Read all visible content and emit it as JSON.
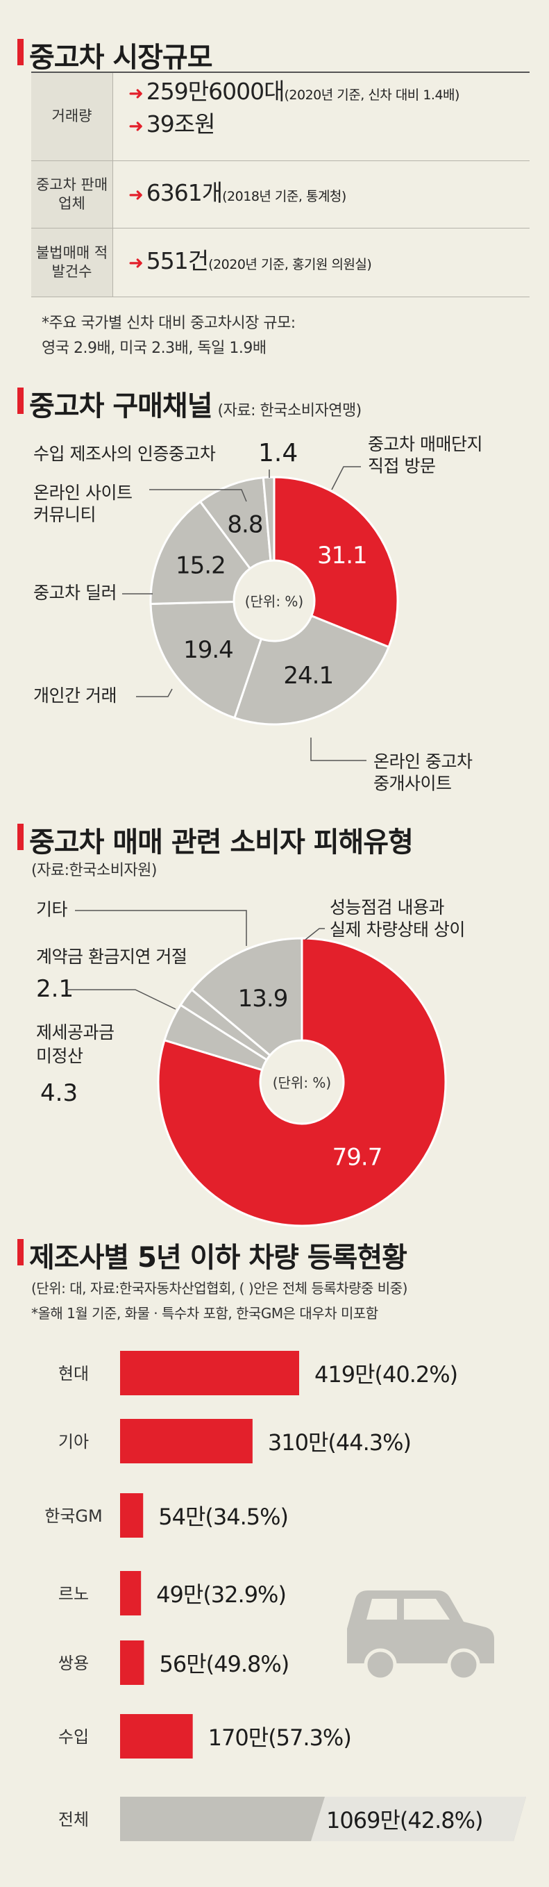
{
  "colors": {
    "accent": "#e3202b",
    "gray": "#c1c0ba",
    "bg": "#f1efe4"
  },
  "section1": {
    "title": "중고차 시장규모",
    "rows": [
      {
        "label": "거래량",
        "lines": [
          {
            "value": "259만6000대",
            "note": "(2020년 기준, 신차 대비 1.4배)"
          },
          {
            "value": "39조원",
            "note": ""
          }
        ]
      },
      {
        "label": "중고차 판매업체",
        "lines": [
          {
            "value": "6361개",
            "note": "(2018년 기준, 통계청)"
          }
        ]
      },
      {
        "label": "불법매매 적발건수",
        "lines": [
          {
            "value": "551건",
            "note": "(2020년 기준, 홍기원 의원실)"
          }
        ]
      }
    ],
    "note_line1": "*주요 국가별 신차 대비 중고차시장 규모:",
    "note_line2": "영국 2.9배, 미국 2.3배, 독일 1.9배"
  },
  "section2": {
    "title": "중고차 구매채널",
    "source": "(자료: 한국소비자연맹)"
  },
  "section3": {
    "title": "중고차 매매 관련 소비자 피해유형",
    "source": "(자료:한국소비자원)"
  },
  "section4": {
    "title": "제조사별 5년 이하 차량 등록현황",
    "source": "(단위: 대, 자료:한국자동차산업협회, (   )안은 전체 등록차량중 비중)",
    "note": "*올해 1월 기준, 화물 · 특수차 포함, 한국GM은 대우차 미포함",
    "car_icon": "car-icon"
  },
  "chart_data": [
    {
      "type": "pie",
      "title": "중고차 구매채널",
      "unit_label": "(단위: %)",
      "slices": [
        {
          "name": "중고차 매매단지 직접 방문",
          "value": 31.1,
          "color": "#e3202b"
        },
        {
          "name": "온라인 중고차 중개사이트",
          "value": 24.1,
          "color": "#c1c0ba"
        },
        {
          "name": "개인간 거래",
          "value": 19.4,
          "color": "#c1c0ba"
        },
        {
          "name": "중고차 딜러",
          "value": 15.2,
          "color": "#c1c0ba"
        },
        {
          "name": "온라인 사이트 커뮤니티",
          "value": 8.8,
          "color": "#c1c0ba"
        },
        {
          "name": "수입 제조사의 인증중고차",
          "value": 1.4,
          "color": "#c1c0ba"
        }
      ]
    },
    {
      "type": "pie",
      "title": "중고차 매매 관련 소비자 피해유형",
      "unit_label": "(단위: %)",
      "slices": [
        {
          "name": "성능점검 내용과 실제 차량상태 상이",
          "value": 79.7,
          "color": "#e3202b"
        },
        {
          "name": "제세공과금 미정산",
          "value": 4.3,
          "color": "#c1c0ba"
        },
        {
          "name": "계약금 환금지연 거절",
          "value": 2.1,
          "color": "#c1c0ba"
        },
        {
          "name": "기타",
          "value": 13.9,
          "color": "#c1c0ba"
        }
      ]
    },
    {
      "type": "bar",
      "title": "제조사별 5년 이하 차량 등록현황",
      "orientation": "horizontal",
      "categories": [
        "현대",
        "기아",
        "한국GM",
        "르노",
        "쌍용",
        "수입",
        "전체"
      ],
      "values": [
        419,
        310,
        54,
        49,
        56,
        170,
        1069
      ],
      "unit": "만",
      "labels": [
        "419만(40.2%)",
        "310만(44.3%)",
        "54만(34.5%)",
        "49만(32.9%)",
        "56만(49.8%)",
        "170만(57.3%)",
        "1069만(42.8%)"
      ],
      "bar_colors": [
        "#e3202b",
        "#e3202b",
        "#e3202b",
        "#e3202b",
        "#e3202b",
        "#e3202b",
        "#c1c0ba"
      ]
    }
  ]
}
